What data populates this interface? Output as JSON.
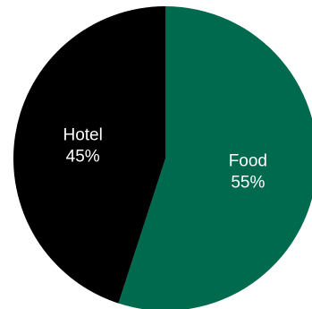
{
  "chart_data": {
    "type": "pie",
    "title": "",
    "legend": "none",
    "slices": [
      {
        "label": "Food",
        "value": 55,
        "value_label": "55%",
        "color": "#006a4e",
        "text_color": "#ffffff"
      },
      {
        "label": "Hotel",
        "value": 45,
        "value_label": "45%",
        "color": "#000000",
        "text_color": "#ffffff"
      }
    ]
  }
}
